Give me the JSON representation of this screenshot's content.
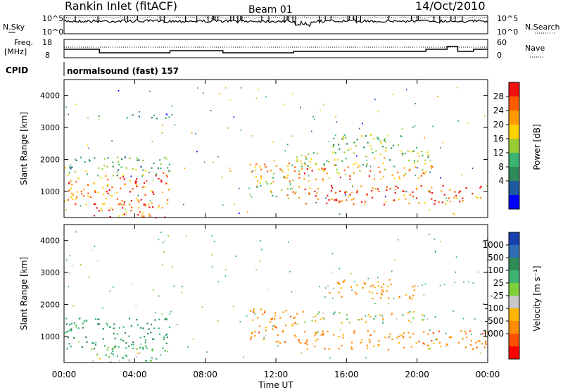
{
  "header": {
    "station": "Rankin Inlet (fitACF)",
    "beam": "Beam 01",
    "date": "14/Oct/2010"
  },
  "top_panel": {
    "nsky_label": "N.Sky",
    "nsky_ticks": [
      "10^5",
      "10^0"
    ],
    "nsearch_label": "N.Search",
    "nsearch_ticks": [
      "10^5",
      "10^0"
    ],
    "freq_label_1": "Freq.",
    "freq_label_2": "[MHz]",
    "freq_ticks": [
      "18",
      "8"
    ],
    "nave_label": "Nave",
    "nave_ticks": [
      "60",
      "0"
    ],
    "cpid_label": "CPID",
    "cpid_text": "normalsound (fast) 157"
  },
  "power_panel": {
    "cbar_label": "Power [dB]",
    "cbar_ticks": [
      "28",
      "24",
      "20",
      "16",
      "12",
      "8",
      "4"
    ],
    "cbar_colors": [
      "#f01010",
      "#ff5a00",
      "#ff9b00",
      "#ffd200",
      "#9acd32",
      "#3cb371",
      "#2e8b57",
      "#1e5aa0",
      "#0000ff"
    ]
  },
  "velocity_panel": {
    "cbar_label": "Velocity [m s⁻¹]",
    "cbar_ticks": [
      "1000",
      "500",
      "100",
      "25",
      "-25",
      "-100",
      "-500",
      "-1000"
    ],
    "cbar_colors": [
      "#1a3fb0",
      "#2e6db4",
      "#2e8b57",
      "#3cb371",
      "#7fcf3a",
      "#c8c8c8",
      "#ffb400",
      "#ff8c00",
      "#ff5000",
      "#ff0000"
    ]
  },
  "chart_data": {
    "type": "heatmap",
    "xlabel": "Time UT",
    "ylabel": "Slant Range [km]",
    "x_ticks": [
      "00:00",
      "04:00",
      "08:00",
      "12:00",
      "16:00",
      "20:00",
      "00:00"
    ],
    "xlim_hours": [
      0,
      24
    ],
    "y_ticks": [
      1000,
      2000,
      3000,
      4000
    ],
    "ylim_km": [
      180,
      4500
    ],
    "series": [
      {
        "panel": "Power [dB]",
        "echo_regions": [
          {
            "t0": 0.0,
            "t1": 6.0,
            "r0": 600,
            "r1": 1600,
            "value": 26
          },
          {
            "t0": 1.5,
            "t1": 6.0,
            "r0": 200,
            "r1": 700,
            "value": 26
          },
          {
            "t0": 0.0,
            "t1": 6.0,
            "r0": 1500,
            "r1": 2100,
            "value": 12
          },
          {
            "t0": 3.5,
            "t1": 6.2,
            "r0": 3300,
            "r1": 3500,
            "value": 8
          },
          {
            "t0": 10.5,
            "t1": 13.5,
            "r0": 800,
            "r1": 1900,
            "value": 20
          },
          {
            "t0": 13.5,
            "t1": 24.0,
            "r0": 600,
            "r1": 1200,
            "value": 28
          },
          {
            "t0": 12.0,
            "t1": 21.0,
            "r0": 1400,
            "r1": 1800,
            "value": 24
          },
          {
            "t0": 13.0,
            "t1": 21.0,
            "r0": 1800,
            "r1": 2300,
            "value": 16
          },
          {
            "t0": 15.0,
            "t1": 20.0,
            "r0": 2300,
            "r1": 2800,
            "value": 14
          }
        ]
      },
      {
        "panel": "Velocity [m s-1]",
        "echo_regions": [
          {
            "t0": 0.0,
            "t1": 6.0,
            "r0": 600,
            "r1": 1600,
            "value": 300
          },
          {
            "t0": 1.5,
            "t1": 6.0,
            "r0": 200,
            "r1": 700,
            "value": 100
          },
          {
            "t0": 10.5,
            "t1": 13.5,
            "r0": 800,
            "r1": 1900,
            "value": -200
          },
          {
            "t0": 13.5,
            "t1": 21.0,
            "r0": 1450,
            "r1": 1800,
            "value": 0
          },
          {
            "t0": 13.5,
            "t1": 24.0,
            "r0": 600,
            "r1": 1200,
            "value": -200
          },
          {
            "t0": 15.0,
            "t1": 20.0,
            "r0": 2200,
            "r1": 2800,
            "value": -150
          }
        ]
      }
    ]
  }
}
